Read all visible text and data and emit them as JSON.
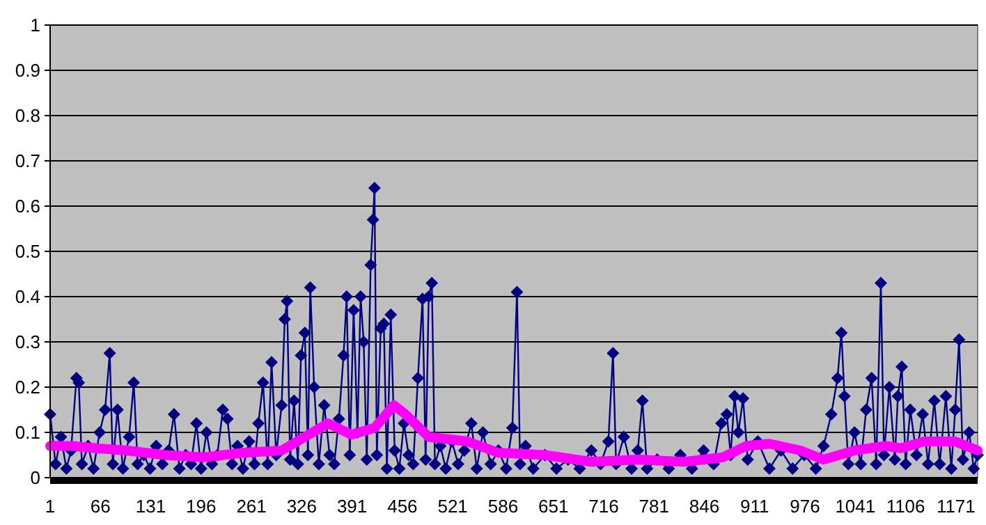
{
  "chart_data": {
    "type": "line",
    "xlim": [
      1,
      1199
    ],
    "xticks": [
      1,
      66,
      131,
      196,
      261,
      326,
      391,
      456,
      521,
      586,
      651,
      716,
      781,
      846,
      911,
      976,
      1041,
      1106,
      1171
    ],
    "ylim": [
      0,
      1
    ],
    "yticks": [
      0,
      0.1,
      0.2,
      0.3,
      0.4,
      0.5,
      0.6,
      0.7,
      0.8,
      0.9,
      1
    ],
    "grid": "y",
    "series": [
      {
        "color": "#000080",
        "marker": "diamond",
        "x": [
          1,
          8,
          15,
          22,
          28,
          35,
          38,
          42,
          50,
          57,
          65,
          72,
          78,
          82,
          88,
          95,
          103,
          109,
          114,
          122,
          130,
          138,
          146,
          154,
          161,
          168,
          176,
          183,
          190,
          196,
          203,
          210,
          217,
          224,
          230,
          236,
          243,
          250,
          258,
          265,
          270,
          276,
          282,
          287,
          293,
          300,
          304,
          307,
          311,
          316,
          321,
          325,
          330,
          334,
          337,
          342,
          348,
          355,
          362,
          368,
          374,
          380,
          384,
          388,
          393,
          398,
          402,
          406,
          410,
          415,
          418,
          420,
          423,
          428,
          432,
          436,
          441,
          446,
          452,
          458,
          464,
          470,
          476,
          482,
          486,
          490,
          494,
          498,
          505,
          512,
          520,
          528,
          536,
          545,
          552,
          560,
          570,
          580,
          590,
          598,
          604,
          608,
          615,
          625,
          640,
          655,
          670,
          685,
          700,
          712,
          722,
          728,
          732,
          742,
          752,
          760,
          766,
          772,
          785,
          800,
          815,
          830,
          845,
          858,
          868,
          875,
          880,
          885,
          890,
          896,
          902,
          915,
          930,
          945,
          960,
          975,
          990,
          1000,
          1010,
          1018,
          1023,
          1027,
          1032,
          1040,
          1048,
          1055,
          1062,
          1068,
          1074,
          1078,
          1085,
          1092,
          1096,
          1101,
          1106,
          1112,
          1120,
          1128,
          1135,
          1143,
          1150,
          1158,
          1165,
          1170,
          1175,
          1180,
          1188,
          1194,
          1199
        ],
        "values": [
          0.14,
          0.03,
          0.09,
          0.02,
          0.06,
          0.22,
          0.21,
          0.03,
          0.07,
          0.02,
          0.1,
          0.15,
          0.275,
          0.03,
          0.15,
          0.02,
          0.09,
          0.21,
          0.03,
          0.05,
          0.02,
          0.07,
          0.03,
          0.06,
          0.14,
          0.02,
          0.05,
          0.03,
          0.12,
          0.02,
          0.1,
          0.03,
          0.05,
          0.15,
          0.13,
          0.03,
          0.07,
          0.02,
          0.08,
          0.03,
          0.12,
          0.21,
          0.03,
          0.255,
          0.05,
          0.16,
          0.35,
          0.39,
          0.04,
          0.17,
          0.03,
          0.27,
          0.32,
          0.05,
          0.42,
          0.2,
          0.03,
          0.16,
          0.05,
          0.03,
          0.13,
          0.27,
          0.4,
          0.05,
          0.37,
          0.1,
          0.4,
          0.3,
          0.04,
          0.47,
          0.57,
          0.64,
          0.05,
          0.33,
          0.34,
          0.02,
          0.36,
          0.06,
          0.02,
          0.12,
          0.05,
          0.03,
          0.22,
          0.395,
          0.04,
          0.4,
          0.43,
          0.03,
          0.07,
          0.02,
          0.08,
          0.03,
          0.06,
          0.12,
          0.02,
          0.1,
          0.03,
          0.06,
          0.02,
          0.11,
          0.41,
          0.03,
          0.07,
          0.02,
          0.05,
          0.02,
          0.04,
          0.02,
          0.06,
          0.03,
          0.08,
          0.275,
          0.03,
          0.09,
          0.02,
          0.06,
          0.17,
          0.02,
          0.04,
          0.02,
          0.05,
          0.02,
          0.06,
          0.03,
          0.12,
          0.14,
          0.05,
          0.18,
          0.1,
          0.175,
          0.04,
          0.08,
          0.02,
          0.06,
          0.02,
          0.05,
          0.02,
          0.07,
          0.14,
          0.22,
          0.32,
          0.18,
          0.03,
          0.1,
          0.03,
          0.15,
          0.22,
          0.03,
          0.43,
          0.05,
          0.2,
          0.04,
          0.18,
          0.245,
          0.03,
          0.15,
          0.05,
          0.14,
          0.03,
          0.17,
          0.03,
          0.18,
          0.02,
          0.15,
          0.305,
          0.04,
          0.1,
          0.02,
          0.05
        ]
      },
      {
        "color": "#ff00ff",
        "marker": "none",
        "x": [
          1,
          30,
          60,
          100,
          150,
          200,
          250,
          300,
          330,
          360,
          390,
          420,
          445,
          460,
          490,
          540,
          580,
          640,
          700,
          760,
          820,
          870,
          900,
          930,
          970,
          1000,
          1040,
          1080,
          1100,
          1130,
          1170,
          1199
        ],
        "values": [
          0.07,
          0.07,
          0.065,
          0.06,
          0.05,
          0.045,
          0.055,
          0.06,
          0.09,
          0.12,
          0.095,
          0.11,
          0.16,
          0.14,
          0.09,
          0.08,
          0.055,
          0.05,
          0.035,
          0.04,
          0.035,
          0.045,
          0.07,
          0.075,
          0.06,
          0.04,
          0.06,
          0.07,
          0.065,
          0.08,
          0.08,
          0.06
        ]
      }
    ]
  }
}
